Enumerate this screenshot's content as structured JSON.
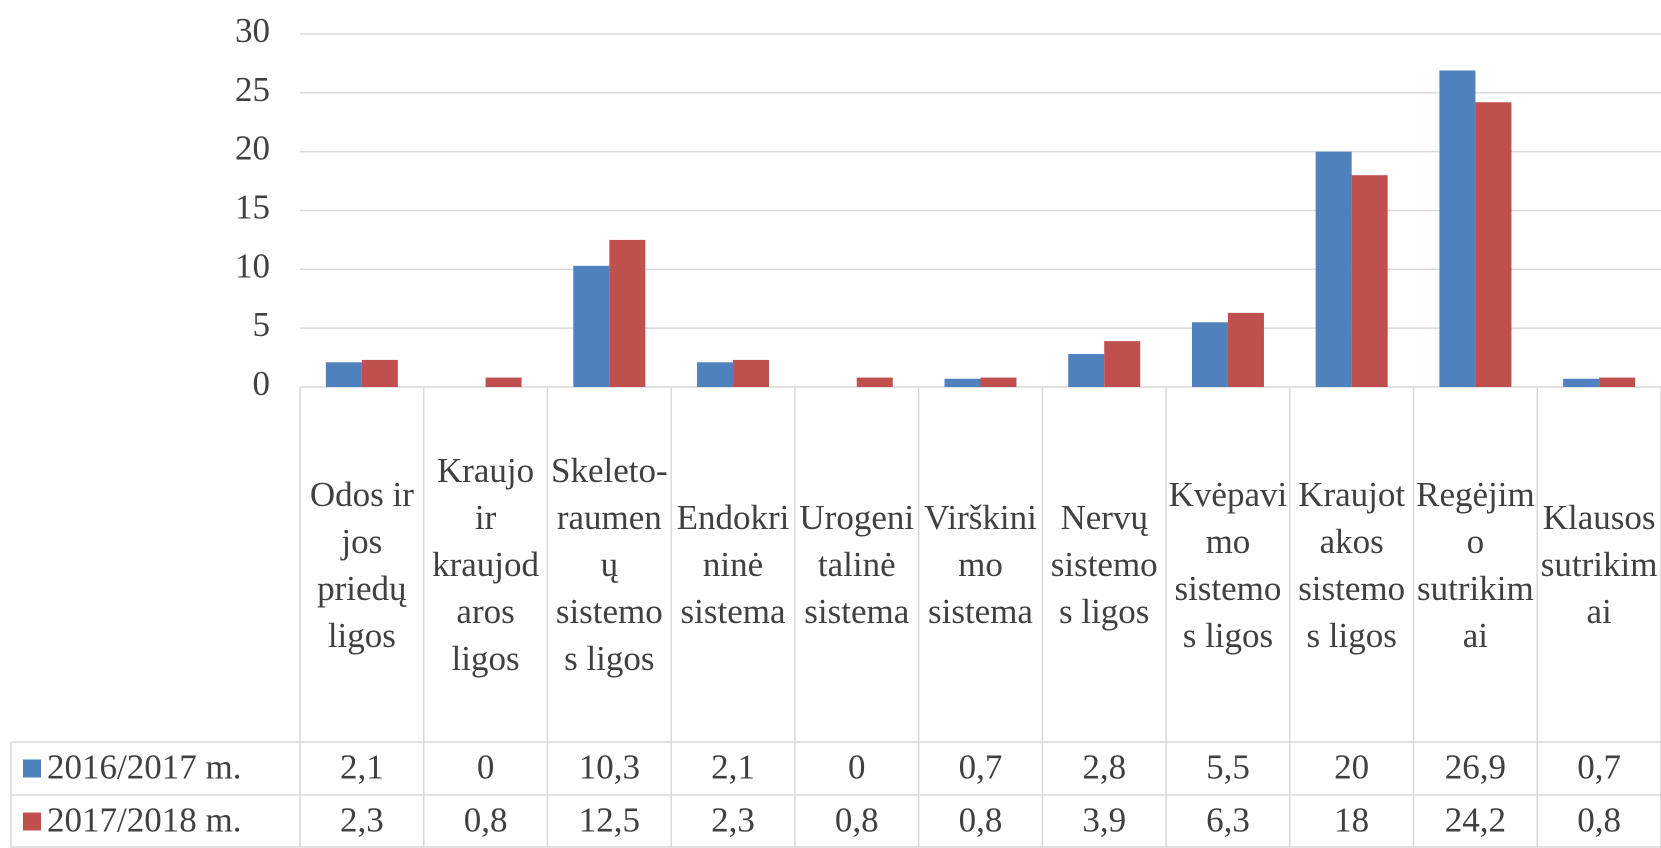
{
  "chart_data": {
    "type": "bar",
    "categories": [
      "Odos ir jos priedų ligos",
      "Kraujo ir kraujodaros ligos",
      "Skeleto-raumenų sistemos ligos",
      "Endokrininė sistema",
      "Urogenitalinė sistema",
      "Virškinimo sistema",
      "Nervų sistemos ligos",
      "Kvėpavimo sistemos ligos",
      "Kraujotakos sistemos ligos",
      "Regėjimo sutrikimai",
      "Klausos sutrikimai"
    ],
    "series": [
      {
        "name": "2016/2017 m.",
        "color": "#4f81bd",
        "values": [
          2.1,
          0,
          10.3,
          2.1,
          0,
          0.7,
          2.8,
          5.5,
          20,
          26.9,
          0.7
        ],
        "value_labels": [
          "2,1",
          "0",
          "10,3",
          "2,1",
          "0",
          "0,7",
          "2,8",
          "5,5",
          "20",
          "26,9",
          "0,7"
        ]
      },
      {
        "name": "2017/2018 m.",
        "color": "#c0504d",
        "values": [
          2.3,
          0.8,
          12.5,
          2.3,
          0.8,
          0.8,
          3.9,
          6.3,
          18,
          24.2,
          0.8
        ],
        "value_labels": [
          "2,3",
          "0,8",
          "12,5",
          "2,3",
          "0,8",
          "0,8",
          "3,9",
          "6,3",
          "18",
          "24,2",
          "0,8"
        ]
      }
    ],
    "ylim": [
      0,
      30
    ],
    "yticks": [
      0,
      5,
      10,
      15,
      20,
      25,
      30
    ],
    "grid": true,
    "data_table": true
  }
}
